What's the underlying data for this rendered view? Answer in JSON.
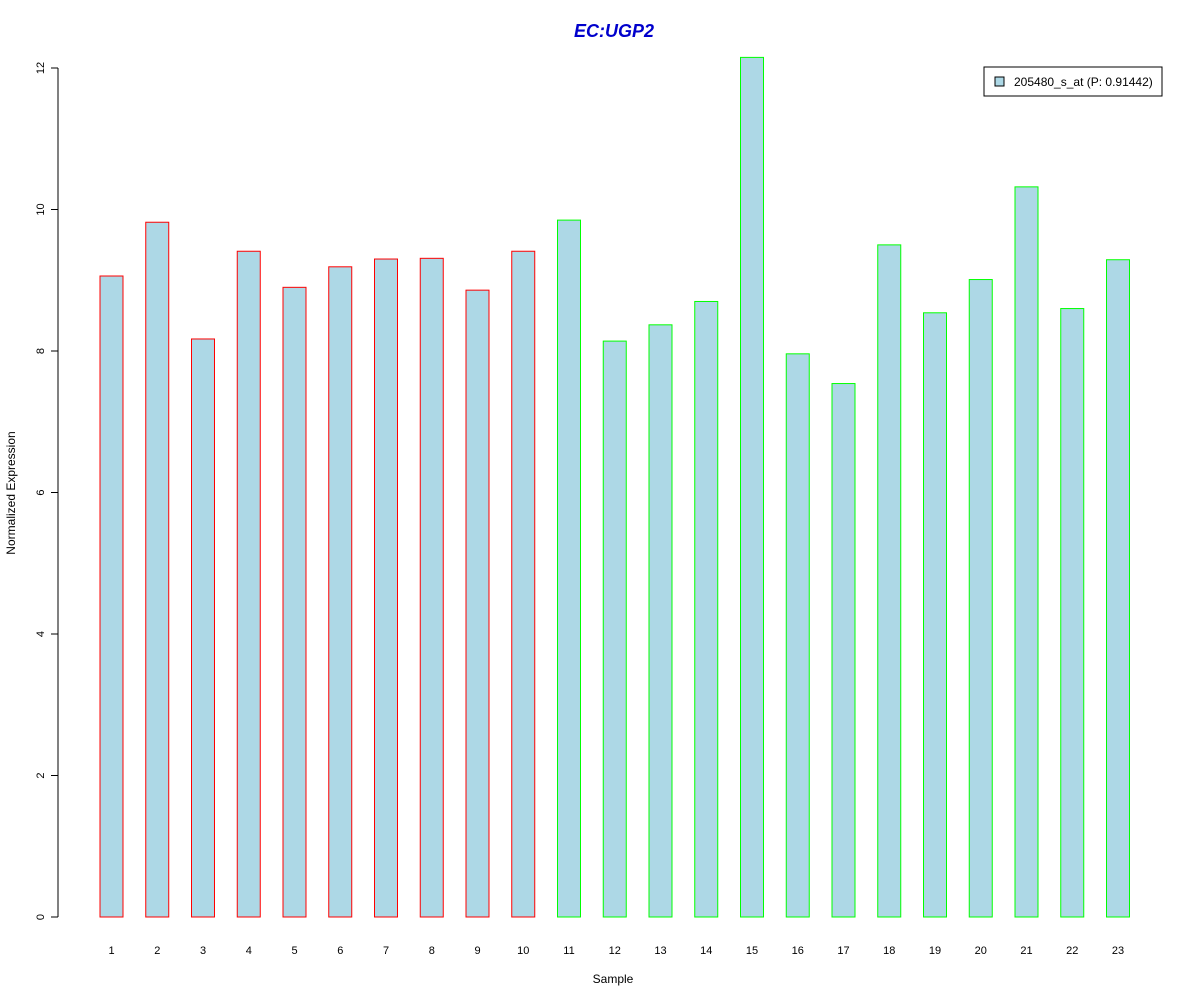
{
  "chart_data": {
    "type": "bar",
    "title": "EC:UGP2",
    "xlabel": "Sample",
    "ylabel": "Normalized Expression",
    "categories": [
      "1",
      "2",
      "3",
      "4",
      "5",
      "6",
      "7",
      "8",
      "9",
      "10",
      "11",
      "12",
      "13",
      "14",
      "15",
      "16",
      "17",
      "18",
      "19",
      "20",
      "21",
      "22",
      "23"
    ],
    "series": [
      {
        "name": "205480_s_at (P: 0.91442)",
        "values": [
          9.06,
          9.82,
          8.17,
          9.41,
          8.9,
          9.19,
          9.3,
          9.31,
          8.86,
          9.41,
          9.85,
          8.14,
          8.37,
          8.7,
          12.15,
          7.96,
          7.54,
          9.5,
          8.54,
          9.01,
          10.32,
          8.6,
          9.29
        ]
      }
    ],
    "group_of_bar": [
      "red",
      "red",
      "red",
      "red",
      "red",
      "red",
      "red",
      "red",
      "red",
      "red",
      "green",
      "green",
      "green",
      "green",
      "green",
      "green",
      "green",
      "green",
      "green",
      "green",
      "green",
      "green",
      "green"
    ],
    "yticks": [
      "0",
      "2",
      "4",
      "6",
      "8",
      "10",
      "12"
    ],
    "ylim": [
      0,
      12.3
    ],
    "grid": false,
    "legend_position": "top-right",
    "colors": {
      "bar_fill": "#add8e6",
      "border_group_1": "#ff0000",
      "border_group_2": "#00ff00",
      "title": "#0000cc"
    }
  }
}
